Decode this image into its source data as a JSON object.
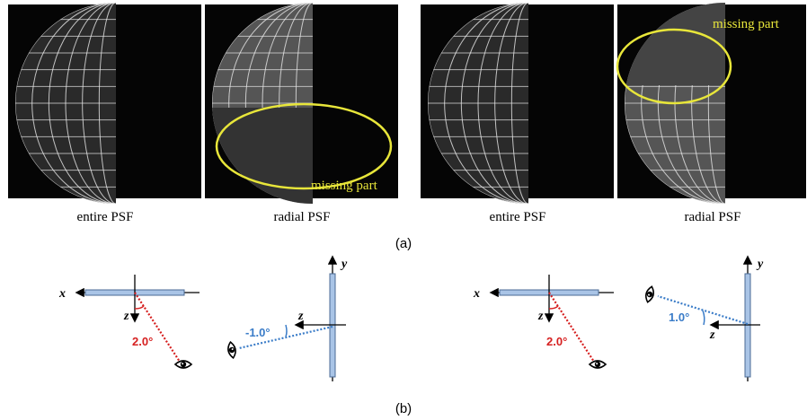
{
  "panel_a": {
    "label": "(a)",
    "images": [
      {
        "caption": "entire PSF"
      },
      {
        "caption": "radial PSF",
        "annotation": "missing part"
      },
      {
        "caption": "entire PSF"
      },
      {
        "caption": "radial PSF",
        "annotation": "missing part"
      }
    ]
  },
  "panel_b": {
    "label": "(b)",
    "diagrams": [
      {
        "axis_x": "x",
        "axis_z": "z",
        "angle": "2.0°"
      },
      {
        "axis_y": "y",
        "axis_z": "z",
        "angle": "-1.0°"
      },
      {
        "axis_x": "x",
        "axis_z": "z",
        "angle": "2.0°"
      },
      {
        "axis_y": "y",
        "axis_z": "z",
        "angle": "1.0°"
      }
    ]
  }
}
